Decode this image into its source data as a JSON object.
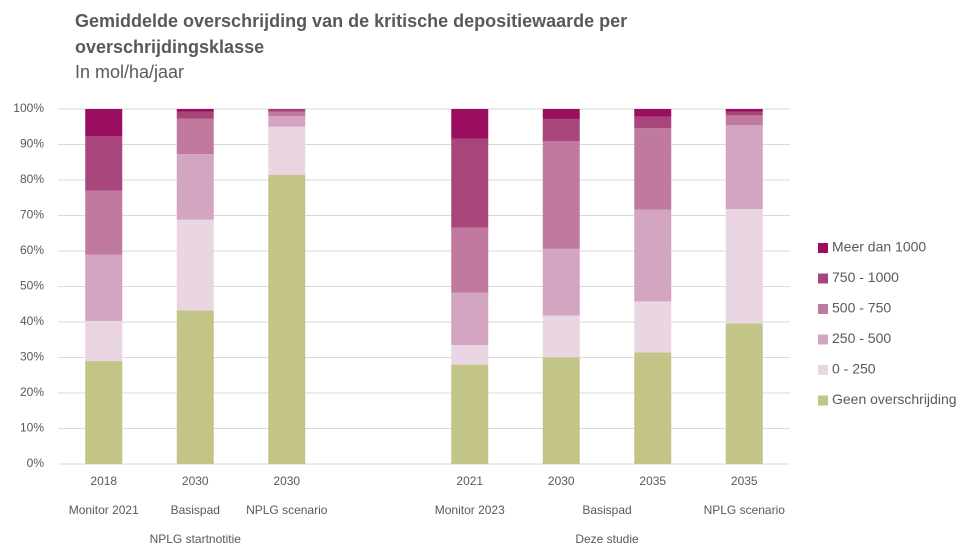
{
  "chart_data": {
    "type": "stacked_bar",
    "title": "Gemiddelde overschrijding van de kritische depositiewaarde per overschrijdingsklasse",
    "subtitle": "In mol/ha/jaar",
    "categories": [
      "2018",
      "2030",
      "2030",
      null,
      "2021",
      "2030",
      "2035",
      "2035"
    ],
    "subgroups": [
      {
        "label": "Monitor 2021",
        "start": 0,
        "span": 1
      },
      {
        "label": "Basispad",
        "start": 1,
        "span": 1
      },
      {
        "label": "NPLG scenario",
        "start": 2,
        "span": 1
      },
      {
        "label": "Monitor 2023",
        "start": 4,
        "span": 1
      },
      {
        "label": "Basispad",
        "start": 5,
        "span": 2
      },
      {
        "label": "NPLG scenario",
        "start": 7,
        "span": 1
      }
    ],
    "groups": [
      {
        "label": "NPLG startnotitie",
        "start": 0,
        "span": 3
      },
      {
        "label": "Deze studie",
        "start": 4,
        "span": 4
      }
    ],
    "series": [
      {
        "name": "Geen overschrijding",
        "color": "#c3c487",
        "values": [
          29,
          43.3,
          81.5,
          null,
          28,
          30,
          31.4,
          39.6
        ]
      },
      {
        "name": "0 - 250",
        "color": "#ead5e2",
        "values": [
          11.3,
          25.5,
          13.5,
          null,
          5.5,
          11.8,
          14.4,
          32.2
        ]
      },
      {
        "name": "250 - 500",
        "color": "#d4a5c1",
        "values": [
          18.7,
          18.5,
          3,
          null,
          14.8,
          18.8,
          25.9,
          23.6
        ]
      },
      {
        "name": "500 - 750",
        "color": "#c07a9f",
        "values": [
          18,
          10,
          1.2,
          null,
          18.3,
          30.3,
          22.9,
          2.8
        ]
      },
      {
        "name": "750 - 1000",
        "color": "#a8467c",
        "values": [
          15.3,
          2,
          0.6,
          null,
          25,
          6.3,
          3.3,
          1
        ]
      },
      {
        "name": "Meer dan 1000",
        "color": "#9b0d5f",
        "values": [
          7.7,
          0.7,
          0.2,
          null,
          8.4,
          2.8,
          2.1,
          0.8
        ]
      }
    ],
    "ylim": [
      0,
      100
    ],
    "yticks": [
      {
        "value": 0,
        "label": "0%"
      },
      {
        "value": 10,
        "label": "10%"
      },
      {
        "value": 20,
        "label": "20%"
      },
      {
        "value": 30,
        "label": "30%"
      },
      {
        "value": 40,
        "label": "40%"
      },
      {
        "value": 50,
        "label": "50%"
      },
      {
        "value": 60,
        "label": "60%"
      },
      {
        "value": 70,
        "label": "70%"
      },
      {
        "value": 80,
        "label": "80%"
      },
      {
        "value": 90,
        "label": "90%"
      },
      {
        "value": 100,
        "label": "100%"
      }
    ],
    "grid": true,
    "legend": "right"
  }
}
